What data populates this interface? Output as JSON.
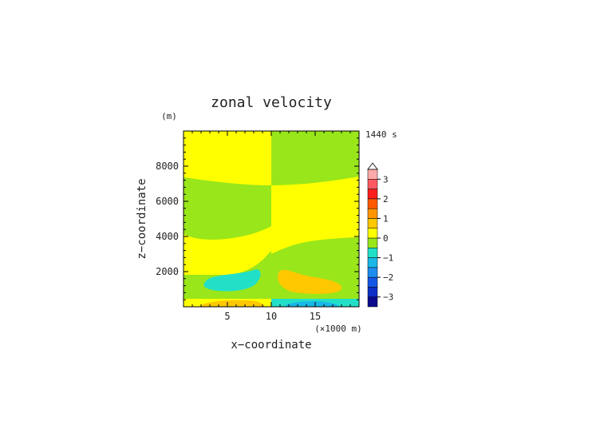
{
  "chart_data": {
    "type": "heatmap",
    "title": "zonal velocity",
    "time_label": "1440 s",
    "xlabel": "x−coordinate",
    "ylabel": "z−coordinate",
    "x_unit": "(×1000 m)",
    "y_unit": "(m)",
    "xlim": [
      0,
      20
    ],
    "ylim": [
      0,
      10000
    ],
    "x_ticks": [
      5,
      10,
      15
    ],
    "y_ticks": [
      2000,
      4000,
      6000,
      8000
    ],
    "x_tick_labels": [
      "5",
      "10",
      "15"
    ],
    "y_tick_labels": [
      "2000",
      "4000",
      "6000",
      "8000"
    ],
    "colorbar": {
      "levels": [
        -3.5,
        -3,
        -2.5,
        -2,
        -1.5,
        -1,
        -0.5,
        0,
        0.5,
        1,
        1.5,
        2,
        2.5,
        3,
        3.5
      ],
      "tick_values": [
        -3,
        -2,
        -1,
        0,
        1,
        2,
        3
      ],
      "tick_labels": [
        "−3",
        "−2",
        "−1",
        "0",
        "1",
        "2",
        "3"
      ],
      "colors": [
        "#0a0a8c",
        "#0f2fc8",
        "#1656e6",
        "#1e8cf0",
        "#19b8e6",
        "#22e0c8",
        "#99e61a",
        "#ffff00",
        "#ffc800",
        "#ff9600",
        "#ff5a00",
        "#ff1e1e",
        "#ff5a64",
        "#ffaaaa"
      ]
    },
    "regions": [
      {
        "band": "upper-left",
        "x": [
          0,
          10
        ],
        "z": [
          7200,
          10000
        ],
        "value": 0.25
      },
      {
        "band": "upper-right",
        "x": [
          10,
          20
        ],
        "z": [
          7200,
          10000
        ],
        "value": -0.25
      },
      {
        "band": "middle-left",
        "x": [
          0,
          10
        ],
        "z": [
          4000,
          7000
        ],
        "value": -0.25
      },
      {
        "band": "middle-right",
        "x": [
          10,
          20
        ],
        "z": [
          4000,
          7000
        ],
        "value": 0.25
      },
      {
        "band": "lower-left",
        "x": [
          0,
          10
        ],
        "z": [
          1800,
          4000
        ],
        "value": 0.25
      },
      {
        "band": "lower-right",
        "x": [
          10,
          20
        ],
        "z": [
          1800,
          4000
        ],
        "value": -0.25
      },
      {
        "feature": "negative-cell-left",
        "x_center": 6.5,
        "z_center": 1250,
        "value": -0.75
      },
      {
        "feature": "positive-cell-right",
        "x_center": 13.5,
        "z_center": 1250,
        "value": 0.75
      },
      {
        "feature": "positive-surface-left",
        "x_center": 5.5,
        "z_center": 150,
        "value": 0.75
      },
      {
        "feature": "negative-surface-right",
        "x_center": 14.5,
        "z_center": 150,
        "value": -1.25
      }
    ]
  }
}
